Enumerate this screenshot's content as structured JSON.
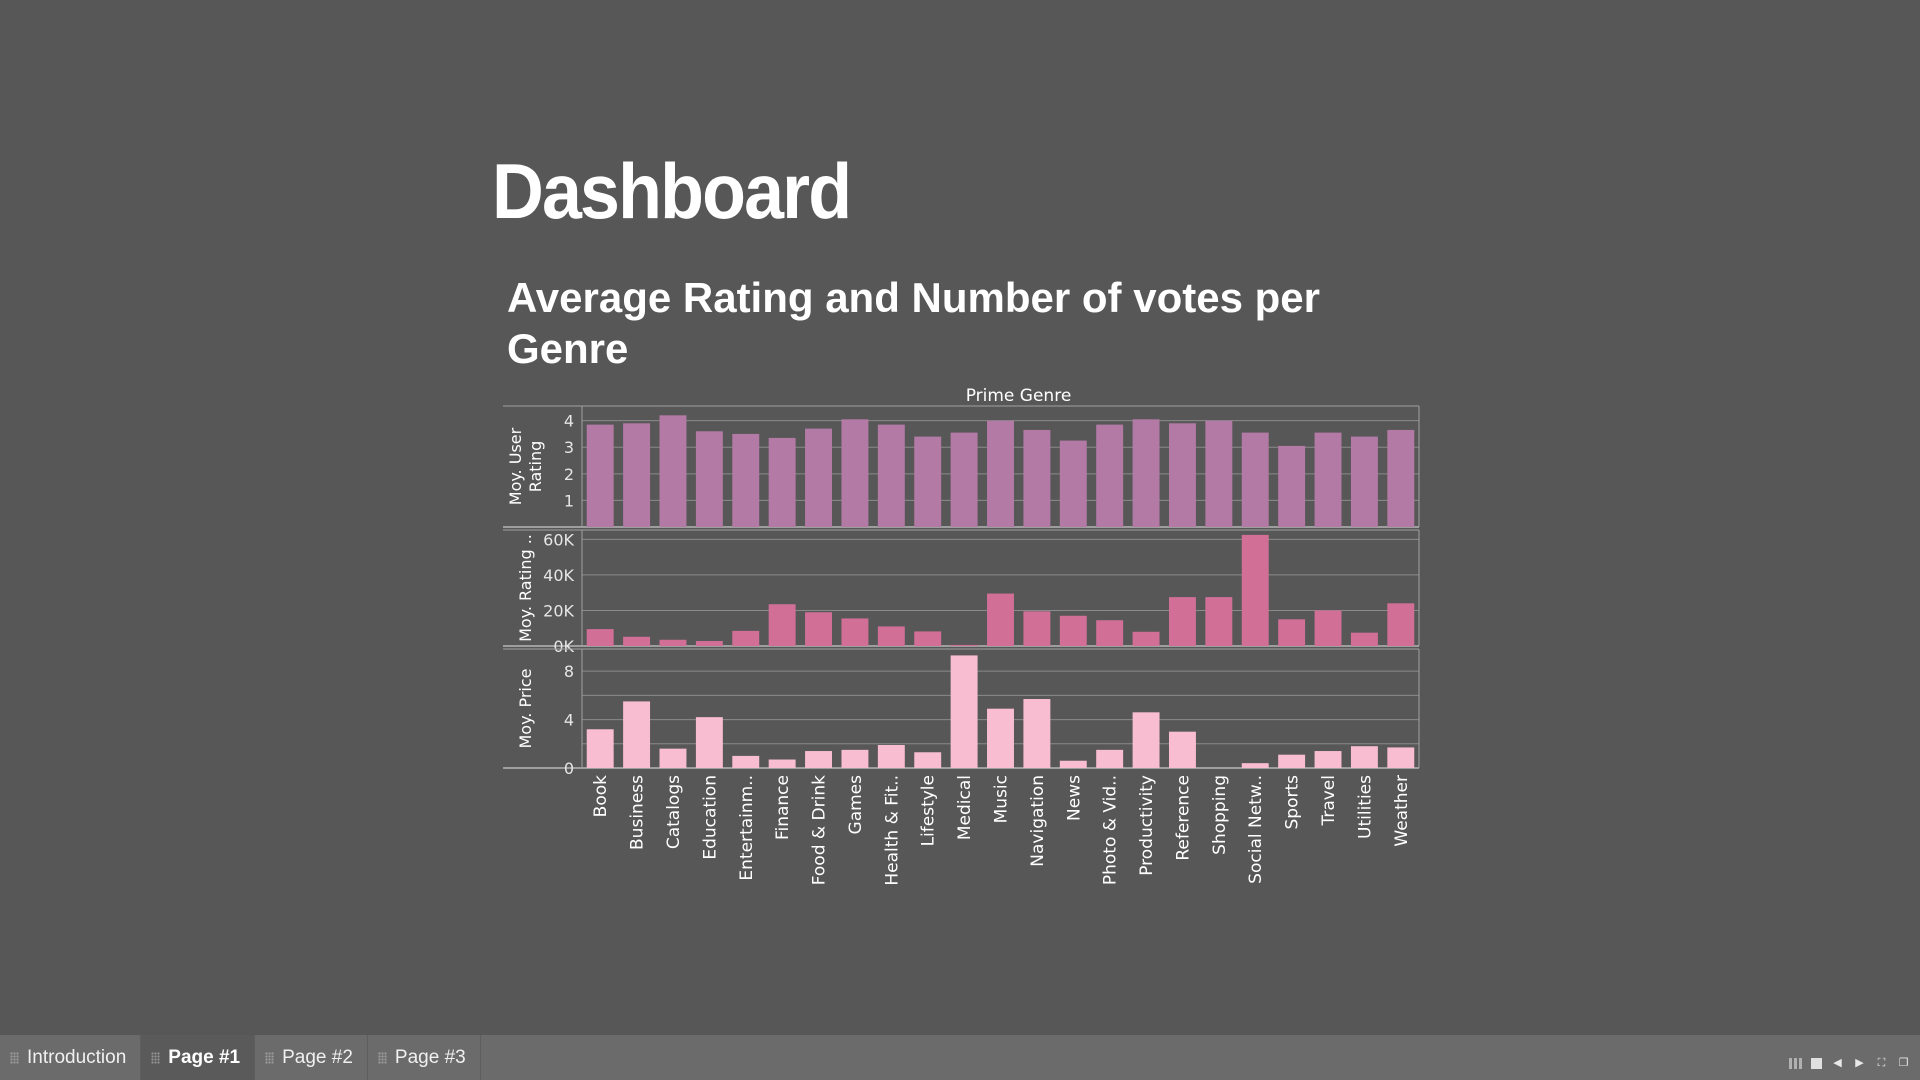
{
  "dashboard": {
    "title": "Dashboard",
    "chart_heading": "Average Rating and  Number of votes per Genre"
  },
  "tabs": [
    {
      "label": "Introduction",
      "active": false
    },
    {
      "label": "Page #1",
      "active": true
    },
    {
      "label": "Page #2",
      "active": false
    },
    {
      "label": "Page #3",
      "active": false
    }
  ],
  "colors": {
    "background": "#575757",
    "rating_bar": "#b37aa6",
    "votes_bar": "#d16f97",
    "price_bar": "#f9bdd2",
    "gridline": "#8a8a8a",
    "axis_text": "#e6e6e6"
  },
  "chart_data": {
    "type": "bar",
    "title": "Prime Genre",
    "categories": [
      "Book",
      "Business",
      "Catalogs",
      "Education",
      "Entertainm..",
      "Finance",
      "Food & Drink",
      "Games",
      "Health & Fit..",
      "Lifestyle",
      "Medical",
      "Music",
      "Navigation",
      "News",
      "Photo & Vid..",
      "Productivity",
      "Reference",
      "Shopping",
      "Social Netw..",
      "Sports",
      "Travel",
      "Utilities",
      "Weather"
    ],
    "series": [
      {
        "name": "Moy. User Rating",
        "ylabel": "Moy. User Rating",
        "ylim": [
          0,
          4.4
        ],
        "ticks": [
          1,
          2,
          3,
          4
        ],
        "tick_labels": [
          "1",
          "2",
          "3",
          "4"
        ],
        "values": [
          3.85,
          3.9,
          4.2,
          3.6,
          3.5,
          3.35,
          3.7,
          4.05,
          3.85,
          3.4,
          3.55,
          4.0,
          3.65,
          3.25,
          3.85,
          4.05,
          3.9,
          4.0,
          3.55,
          3.05,
          3.55,
          3.4,
          3.65
        ]
      },
      {
        "name": "Moy. Rating Count",
        "ylabel": "Moy. Rating ..",
        "ylim": [
          0,
          63000
        ],
        "ticks": [
          0,
          20000,
          40000,
          60000
        ],
        "tick_labels": [
          "0K",
          "20K",
          "40K",
          "60K"
        ],
        "values": [
          9500,
          5200,
          3500,
          2800,
          8500,
          23500,
          19000,
          15500,
          11000,
          8200,
          600,
          29500,
          19500,
          17000,
          14500,
          8000,
          27500,
          27500,
          62500,
          15000,
          20000,
          7500,
          24000
        ]
      },
      {
        "name": "Moy. Price",
        "ylabel": "Moy. Price",
        "ylim": [
          0,
          9.5
        ],
        "ticks": [
          0,
          4,
          8
        ],
        "tick_labels": [
          "0",
          "4",
          "8"
        ],
        "gridlines": [
          0,
          2,
          4,
          6,
          8
        ],
        "values": [
          3.2,
          5.5,
          1.6,
          4.2,
          1.0,
          0.7,
          1.4,
          1.5,
          1.9,
          1.3,
          9.3,
          4.9,
          5.7,
          0.6,
          1.5,
          4.6,
          3.0,
          0.0,
          0.4,
          1.1,
          1.4,
          1.8,
          1.7
        ]
      }
    ]
  }
}
